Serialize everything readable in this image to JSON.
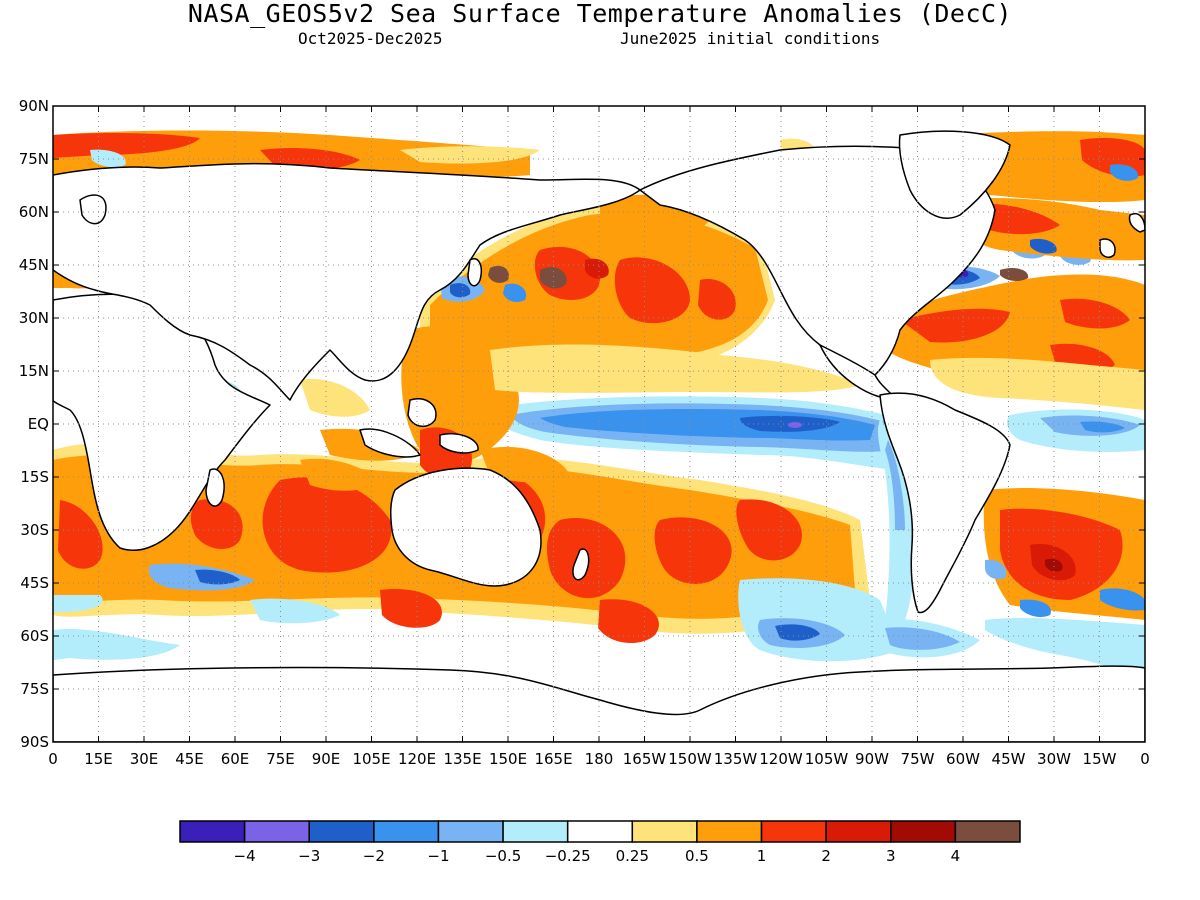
{
  "title": "NASA_GEOS5v2 Sea Surface Temperature Anomalies (DecC)",
  "period": "Oct2025-Dec2025",
  "init": "June2025 initial conditions",
  "axes": {
    "lat_labels": [
      "90N",
      "75N",
      "60N",
      "45N",
      "30N",
      "15N",
      "EQ",
      "15S",
      "30S",
      "45S",
      "60S",
      "75S",
      "90S"
    ],
    "lon_labels": [
      "0",
      "15E",
      "30E",
      "45E",
      "60E",
      "75E",
      "90E",
      "105E",
      "120E",
      "135E",
      "150E",
      "165E",
      "180",
      "165W",
      "150W",
      "135W",
      "120W",
      "105W",
      "90W",
      "75W",
      "60W",
      "45W",
      "30W",
      "15W",
      "0"
    ]
  },
  "colorbar": {
    "colors": [
      "#3a1fb8",
      "#7a63e6",
      "#1e5fc9",
      "#3a92ef",
      "#78b4f3",
      "#b3ecfb",
      "#ffffff",
      "#fee27a",
      "#ff9e0b",
      "#f7350a",
      "#d81a07",
      "#a10a05",
      "#7b4d3e"
    ],
    "tick_labels": [
      "-4",
      "-3",
      "-2",
      "-1",
      "-0.5",
      "-0.25",
      "0.25",
      "0.5",
      "1",
      "2",
      "3",
      "4"
    ]
  }
}
